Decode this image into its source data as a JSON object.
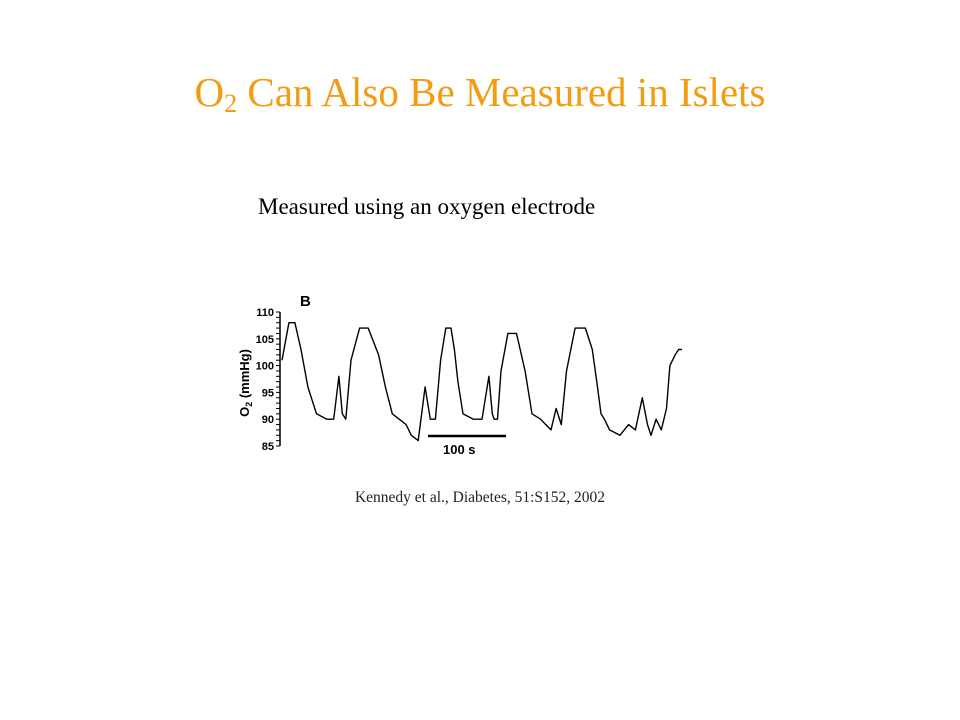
{
  "slide": {
    "title_main": "O",
    "title_sub": "2",
    "title_rest": " Can Also Be Measured in Islets",
    "subtitle": "Measured using an oxygen electrode",
    "citation": "Kennedy et al., Diabetes, 51:S152, 2002",
    "colors": {
      "title": "#f39c12",
      "text": "#000000"
    }
  },
  "chart_data": {
    "type": "line",
    "panel_label": "B",
    "ylabel_main": "O",
    "ylabel_sub": "2",
    "ylabel_rest": " (mmHg)",
    "ylim": [
      85,
      110
    ],
    "yticks": [
      "110",
      "105",
      "100",
      "95",
      "90",
      "85"
    ],
    "scale_bar_label": "100 s",
    "scale_bar_seconds": 100,
    "x_units": "s",
    "series": [
      {
        "x": [
          0,
          8,
          15,
          22,
          30,
          40,
          52,
          60,
          66,
          70,
          74,
          80,
          90,
          100,
          112,
          120,
          128,
          136,
          144,
          150,
          158,
          166,
          172,
          178,
          184,
          190,
          196,
          200,
          204,
          210,
          222,
          232,
          240,
          244,
          246,
          250,
          254,
          262,
          272,
          282,
          290,
          300,
          306,
          312,
          318,
          324,
          330,
          340,
          352,
          360,
          366,
          370,
          374,
          380,
          392,
          402,
          410,
          418,
          424,
          428,
          434,
          440,
          446,
          450,
          456,
          460,
          464
        ],
        "y": [
          101,
          108,
          108,
          103,
          96,
          91,
          90,
          90,
          98,
          91,
          90,
          101,
          107,
          107,
          102,
          96,
          91,
          90,
          89,
          87,
          86,
          96,
          90,
          90,
          101,
          107,
          107,
          103,
          97,
          91,
          90,
          90,
          98,
          91,
          90,
          90,
          99,
          106,
          106,
          99,
          91,
          90,
          89,
          88,
          92,
          89,
          99,
          107,
          107,
          103,
          96,
          91,
          90,
          88,
          87,
          89,
          88,
          94,
          89,
          87,
          90,
          88,
          92,
          100,
          102,
          103,
          103
        ]
      }
    ]
  }
}
